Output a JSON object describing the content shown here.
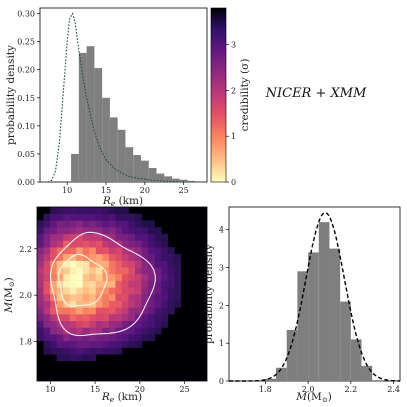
{
  "annotation": "NICER + XMM",
  "chart_data": [
    {
      "type": "bar",
      "xlabel": "R_e (km)",
      "ylabel": "probability density",
      "xlim": [
        6.5,
        28
      ],
      "ylim": [
        0,
        0.31
      ],
      "xticks": [
        10,
        15,
        20,
        25
      ],
      "yticks": [
        0.0,
        0.05,
        0.1,
        0.15,
        0.2,
        0.25,
        0.3
      ],
      "ytick_labels": [
        "0.00",
        "0.05",
        "0.10",
        "0.15",
        "0.20",
        "0.25",
        "0.30"
      ],
      "bin_edges": [
        10.5,
        11.5,
        12.5,
        13.5,
        14.5,
        15.5,
        16.5,
        17.5,
        18.5,
        19.5,
        20.5,
        21.5,
        22.5,
        23.5,
        24.5,
        25.5,
        26.5
      ],
      "values": [
        0.05,
        0.23,
        0.242,
        0.203,
        0.15,
        0.115,
        0.093,
        0.062,
        0.048,
        0.038,
        0.025,
        0.015,
        0.01,
        0.006,
        0.004,
        0.002
      ],
      "bar_color": "#7f7f7f",
      "prior_curve": {
        "style": "dotted",
        "color": "#1f4f3f",
        "x": [
          7.5,
          8.0,
          8.5,
          9.0,
          9.5,
          10.0,
          10.3,
          10.7,
          11.0,
          11.5,
          12.0,
          12.5,
          13.0,
          13.5,
          14.0,
          14.5,
          15.0,
          16.0,
          17.0,
          18.0,
          19.0,
          20.0,
          21.0,
          22.0,
          23.0,
          25.0,
          27.0
        ],
        "y": [
          0.0,
          0.003,
          0.02,
          0.07,
          0.16,
          0.25,
          0.29,
          0.3,
          0.285,
          0.235,
          0.19,
          0.15,
          0.118,
          0.09,
          0.068,
          0.052,
          0.04,
          0.025,
          0.016,
          0.01,
          0.007,
          0.005,
          0.003,
          0.002,
          0.001,
          0.0,
          0.0
        ]
      }
    },
    {
      "type": "heatmap",
      "xlabel": "R_e (km)",
      "ylabel": "M (M_⊙)",
      "xlim": [
        8.5,
        27.5
      ],
      "ylim": [
        1.63,
        2.38
      ],
      "xticks": [
        10,
        15,
        20,
        25
      ],
      "yticks": [
        1.8,
        2.0,
        2.2
      ],
      "ytick_labels": [
        "1.8",
        "2.0",
        "2.2"
      ],
      "density_center": {
        "R": 12.6,
        "M": 2.06
      },
      "contours": [
        {
          "level": "1σ",
          "R_center": 13.2,
          "M_center": 2.06,
          "R_halfwidth_left": 2.3,
          "R_halfwidth_right": 3.0,
          "M_halfwidth": 0.11
        },
        {
          "level": "2σ",
          "R_center": 14.6,
          "M_center": 2.04,
          "R_halfwidth_left": 4.6,
          "R_halfwidth_right": 6.8,
          "M_halfwidth": 0.22
        }
      ],
      "colormap": "magma"
    },
    {
      "type": "bar",
      "xlabel": "M (M_⊙)",
      "ylabel": "probability density",
      "xlim": [
        1.63,
        2.43
      ],
      "ylim": [
        0,
        4.6
      ],
      "xticks": [
        1.8,
        2.0,
        2.2,
        2.4
      ],
      "xtick_labels": [
        "1.8",
        "2.0",
        "2.2",
        "2.4"
      ],
      "yticks": [
        0,
        1,
        2,
        3,
        4
      ],
      "bin_edges": [
        1.8,
        1.85,
        1.9,
        1.95,
        2.0,
        2.05,
        2.1,
        2.15,
        2.2,
        2.25,
        2.3
      ],
      "values": [
        0.06,
        0.35,
        1.35,
        2.9,
        3.4,
        4.2,
        3.5,
        2.1,
        1.1,
        0.4
      ],
      "bar_color": "#7f7f7f",
      "fit_curve": {
        "style": "dashed",
        "color": "#000000",
        "mean": 2.08,
        "sigma": 0.09,
        "peak": 4.45
      }
    }
  ],
  "colorbar": {
    "label": "credibility (σ)",
    "range": [
      0,
      3.8
    ],
    "ticks": [
      0,
      1,
      2,
      3
    ],
    "colormap": "magma_r"
  },
  "labels": {
    "top_xlabel_base": "R",
    "top_xlabel_sub": "e",
    "top_xlabel_unit": " (km)",
    "top_ylabel": "probability density",
    "hm_xlabel_base": "R",
    "hm_xlabel_sub": "e",
    "hm_xlabel_unit": " (km)",
    "hm_ylabel_base": "M",
    "hm_ylabel_unit_pre": "(M",
    "hm_ylabel_unit_sub": "⊙",
    "hm_ylabel_unit_post": ")",
    "mass_xlabel_base": "M",
    "mass_xlabel_unit_pre": "(M",
    "mass_xlabel_unit_sub": "⊙",
    "mass_xlabel_unit_post": ")",
    "mass_ylabel": "probability density",
    "cb_label": "credibility (σ)"
  }
}
